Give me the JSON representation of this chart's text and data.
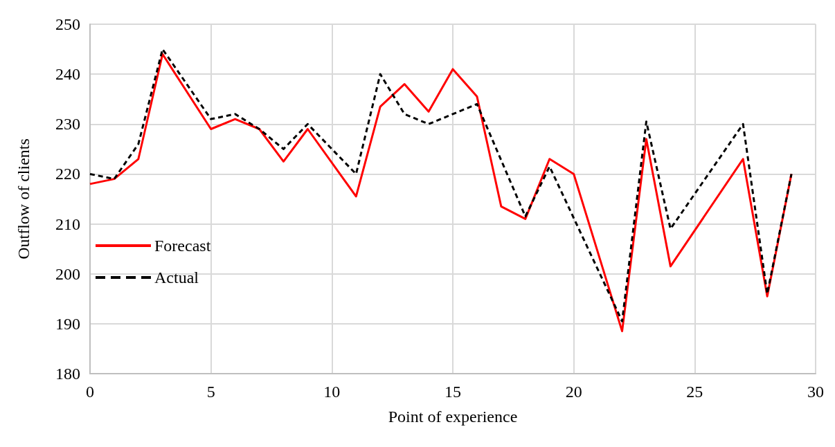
{
  "chart_data": {
    "type": "line",
    "xlabel": "Point of experience",
    "ylabel": "Outflow of clients",
    "series": [
      {
        "name": "Forecast",
        "color": "#ff0000",
        "line_style": "solid",
        "x": [
          0,
          1,
          2,
          3,
          5,
          6,
          7,
          8,
          9,
          11,
          12,
          13,
          14,
          15,
          16,
          17,
          18,
          19,
          20,
          22,
          23,
          24,
          27,
          28,
          29
        ],
        "values": [
          218,
          219,
          223,
          244,
          229,
          231,
          229,
          222.5,
          229,
          215.5,
          233.5,
          238,
          232.5,
          241,
          235.5,
          213.5,
          211,
          223,
          220,
          188.5,
          227,
          201.5,
          223,
          195.5,
          220
        ]
      },
      {
        "name": "Actual",
        "color": "#000000",
        "line_style": "dashed",
        "x": [
          0,
          1,
          2,
          3,
          5,
          6,
          7,
          8,
          9,
          11,
          12,
          13,
          14,
          16,
          18,
          19,
          22,
          23,
          24,
          27,
          28,
          29
        ],
        "values": [
          220,
          219,
          226,
          245,
          231,
          232,
          229,
          225,
          230,
          220,
          240,
          232,
          230,
          234,
          211.5,
          221.5,
          190.5,
          230.5,
          209,
          230,
          196,
          220
        ]
      }
    ],
    "xlim": [
      0,
      30
    ],
    "xticks": [
      0,
      5,
      10,
      15,
      20,
      25,
      30
    ],
    "ylim": [
      180,
      250
    ],
    "yticks": [
      180,
      190,
      200,
      210,
      220,
      230,
      240,
      250
    ],
    "grid": true,
    "legend": "left",
    "marker": "none"
  }
}
